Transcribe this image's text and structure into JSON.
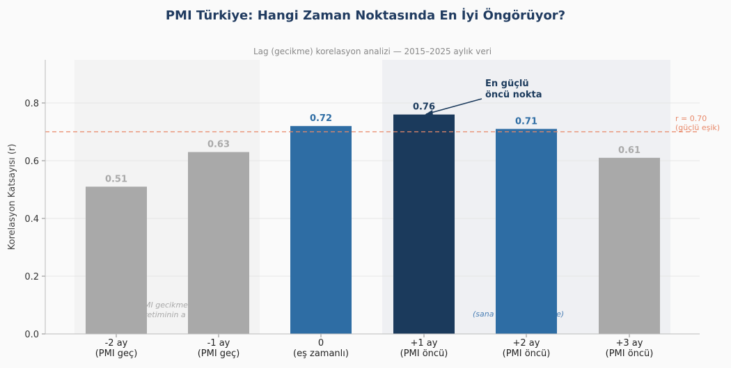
{
  "chart_data": {
    "type": "bar",
    "title": "PMI Türkiye: Hangi Zaman Noktasında En İyi Öngörüyor?",
    "subtitle": "Lag (gecikme) korelasyon analizi — 2015–2025 aylık veri",
    "ylabel": "Korelasyon Katsayısı (r)",
    "ylim": [
      0,
      0.95
    ],
    "yticks": [
      "0.0",
      "0.2",
      "0.4",
      "0.6",
      "0.8"
    ],
    "ytick_values": [
      0,
      0.2,
      0.4,
      0.6,
      0.8
    ],
    "categories": [
      [
        "-2 ay",
        "(PMI geç)"
      ],
      [
        "-1 ay",
        "(PMI geç)"
      ],
      [
        "0",
        "(eş zamanlı)"
      ],
      [
        "+1 ay",
        "(PMI öncü)"
      ],
      [
        "+2 ay",
        "(PMI öncü)"
      ],
      [
        "+3 ay",
        "(PMI öncü)"
      ]
    ],
    "values": [
      0.51,
      0.63,
      0.72,
      0.76,
      0.71,
      0.61
    ],
    "value_labels": [
      "0.51",
      "0.63",
      "0.72",
      "0.76",
      "0.71",
      "0.61"
    ],
    "bar_colors": [
      "#a9a9a9",
      "#a9a9a9",
      "#2e6da4",
      "#1b3a5c",
      "#2e6da4",
      "#a9a9a9"
    ],
    "label_colors": [
      "#a9a9a9",
      "#a9a9a9",
      "#2e6da4",
      "#1b3a5c",
      "#2e6da4",
      "#a9a9a9"
    ],
    "threshold": {
      "value": 0.7,
      "label_line1": "r = 0.70",
      "label_line2": "(güçlü eşik)",
      "color": "#e8896a"
    },
    "annotation": {
      "line1": "En güçlü",
      "line2": "öncü nokta",
      "target_index": 3
    },
    "region_notes": {
      "left_line1": "MI gecikme",
      "left_line2": "retiminin a",
      "right": "(sana                    önce)"
    },
    "grid": true
  }
}
